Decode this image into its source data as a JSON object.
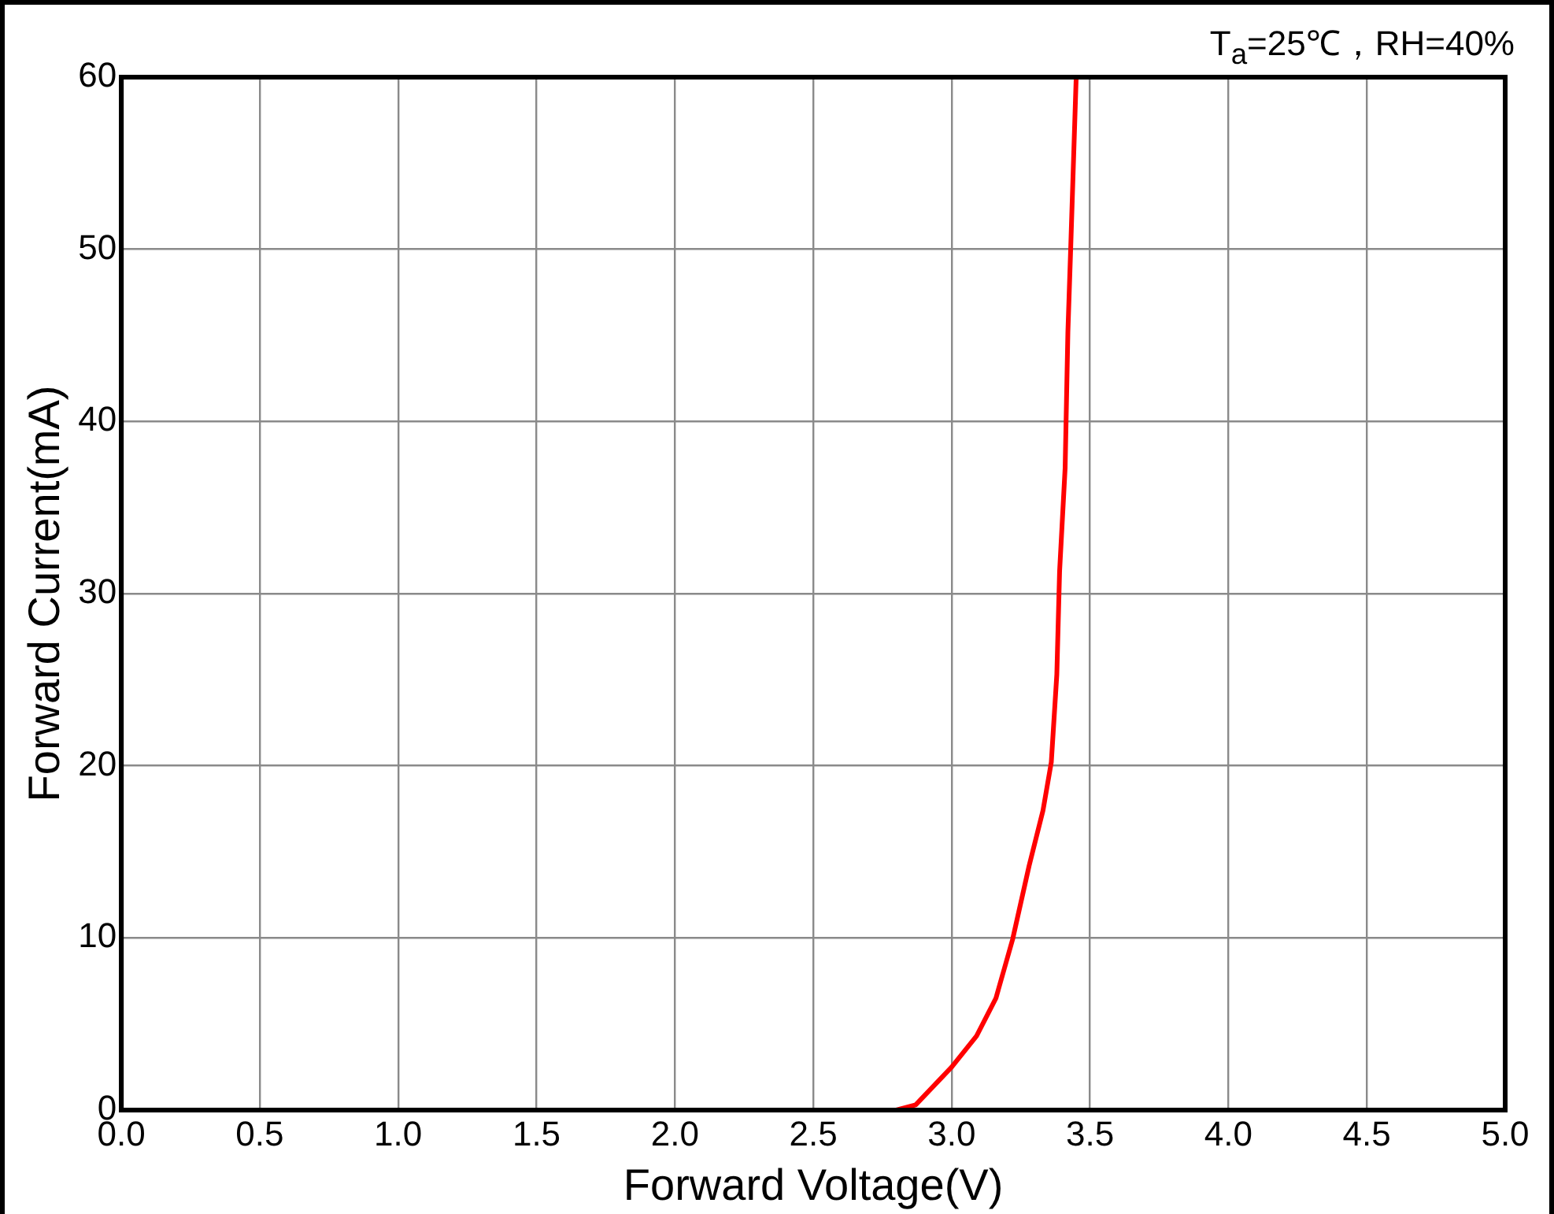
{
  "chart_data": {
    "type": "line",
    "xlabel": "Forward Voltage(V)",
    "ylabel": "Forward Current(mA)",
    "annotations": [
      "T$_{a}$=25℃，RH=40%"
    ],
    "series": [
      {
        "color": "#ff0000",
        "x": [
          2.8,
          2.87,
          3.0,
          3.09,
          3.16,
          3.22,
          3.28,
          3.33,
          3.36,
          3.38,
          3.39,
          3.41,
          3.42,
          3.43,
          3.45
        ],
        "values": [
          0,
          0.3,
          2.5,
          4.3,
          6.5,
          9.9,
          14.2,
          17.4,
          20.2,
          25.3,
          31.3,
          37.3,
          45.2,
          50,
          60
        ]
      }
    ],
    "xlim": [
      0,
      5
    ],
    "xticks": [
      {
        "value": 0,
        "label": "0.0"
      },
      {
        "value": 0.5,
        "label": "0.5"
      },
      {
        "value": 1,
        "label": "1.0"
      },
      {
        "value": 1.5,
        "label": "1.5"
      },
      {
        "value": 2,
        "label": "2.0"
      },
      {
        "value": 2.5,
        "label": "2.5"
      },
      {
        "value": 3,
        "label": "3.0"
      },
      {
        "value": 3.5,
        "label": "3.5"
      },
      {
        "value": 4,
        "label": "4.0"
      },
      {
        "value": 4.5,
        "label": "4.5"
      },
      {
        "value": 5,
        "label": "5.0"
      }
    ],
    "ylim": [
      0,
      60
    ],
    "yticks": [
      0,
      10,
      20,
      30,
      40,
      50,
      60
    ],
    "grid": true,
    "legend": false,
    "marker": "none",
    "line_style": "solid"
  }
}
